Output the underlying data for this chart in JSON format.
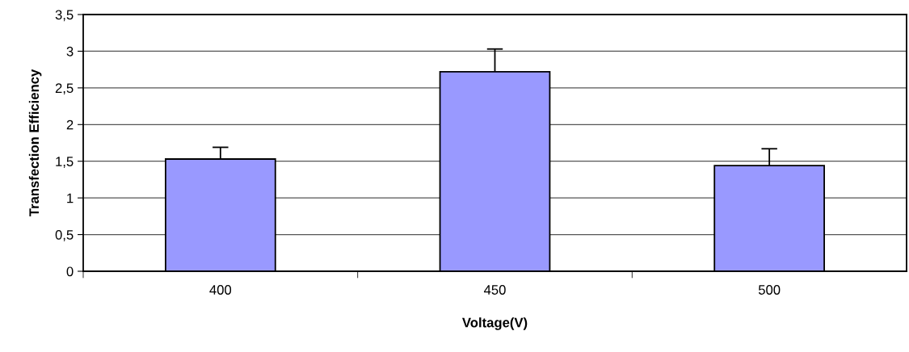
{
  "chart_data": {
    "type": "bar",
    "xlabel": "Voltage(V)",
    "ylabel": "Transfection Efficiency",
    "categories": [
      "400",
      "450",
      "500"
    ],
    "values": [
      1.53,
      2.72,
      1.44
    ],
    "errors": [
      [
        1.53,
        1.69
      ],
      [
        2.72,
        3.03
      ],
      [
        1.44,
        1.67
      ]
    ],
    "color": "#9999ff",
    "ylim": [
      0,
      3.5
    ],
    "yticks": [
      0,
      {
        "value": 0.5,
        "label": "0,5"
      },
      1,
      {
        "value": 1.5,
        "label": "1,5"
      },
      2,
      {
        "value": 2.5,
        "label": "2,5"
      },
      3,
      {
        "value": 3.5,
        "label": "3,5"
      }
    ],
    "grid": "y",
    "legend": false
  }
}
